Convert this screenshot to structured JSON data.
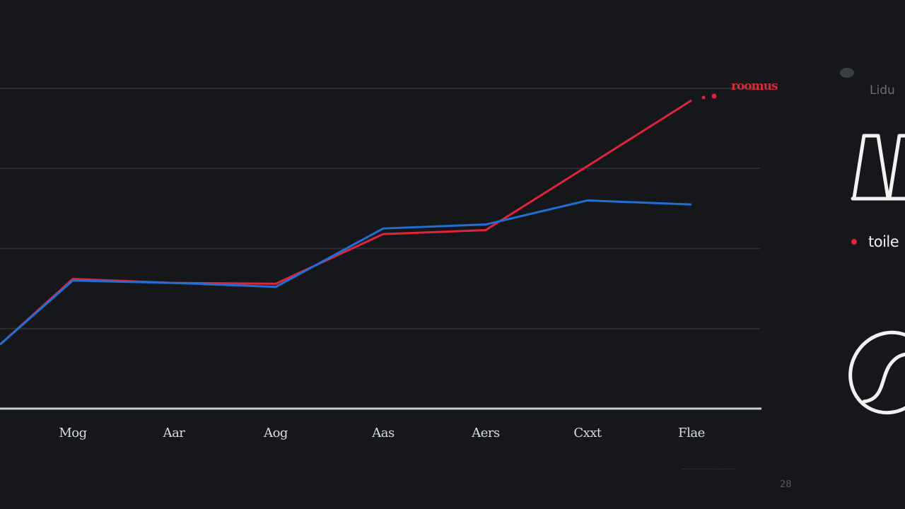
{
  "chart_data": {
    "type": "line",
    "title": "",
    "xlabel": "",
    "ylabel": "",
    "ylim": [
      0,
      4
    ],
    "grid": true,
    "legend_position": "right",
    "categories": [
      "Mog",
      "Aar",
      "Aog",
      "Aas",
      "Aers",
      "Cxxt",
      "Flae"
    ],
    "series": [
      {
        "name": "blue",
        "color": "#1f6fd6",
        "values": [
          1.6,
          1.57,
          1.52,
          2.25,
          2.3,
          2.6,
          2.55
        ]
      },
      {
        "name": "toile",
        "color": "#e0243a",
        "values": [
          1.62,
          1.57,
          1.56,
          2.18,
          2.23,
          3.03,
          3.85
        ]
      }
    ],
    "annotations": [
      "roomus"
    ]
  },
  "plot": {
    "gridline_color": "#2c2f34",
    "axis_color": "#c9ccd1",
    "background": "#15171b"
  },
  "labels": {
    "end_label": "roomus",
    "legend_faint": "Lidu",
    "legend_item": "toile",
    "footer_note": "..............................",
    "page_number": "28"
  },
  "icons": {
    "top": "trapezoid-outline-icon",
    "bottom": "swirl-circle-icon"
  }
}
